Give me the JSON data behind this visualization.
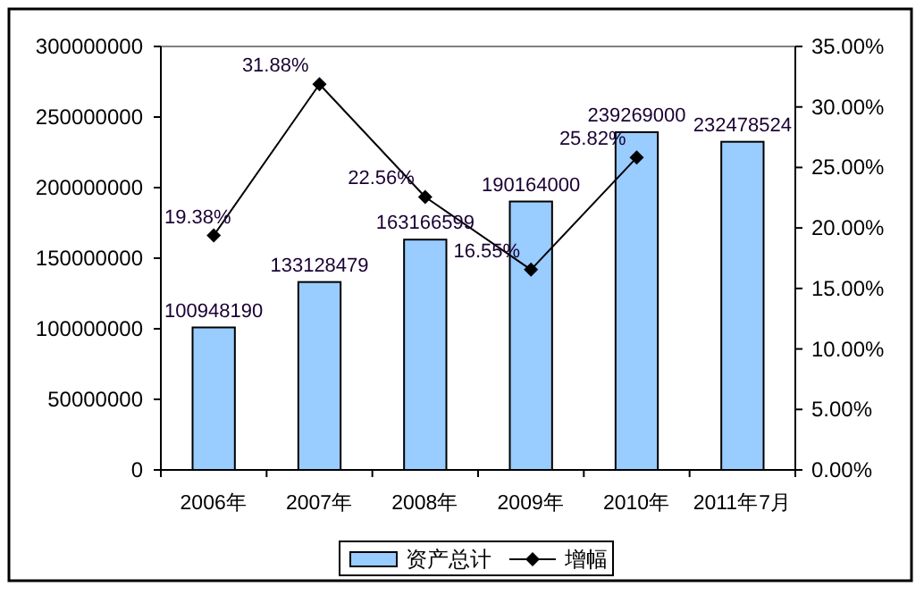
{
  "chart_data": {
    "type": "bar",
    "categories": [
      "2006年",
      "2007年",
      "2008年",
      "2009年",
      "2010年",
      "2011年7月"
    ],
    "series": [
      {
        "name": "资产总计",
        "color": "#99ccff",
        "values": [
          100948190,
          133128479,
          163166599,
          190164000,
          239269000,
          232478524
        ],
        "value_labels": [
          "100948190",
          "133128479",
          "163166599",
          "190164000",
          "239269000",
          "232478524"
        ]
      },
      {
        "name": "增幅",
        "type": "line",
        "axis": "y2",
        "color": "#000000",
        "marker": "diamond",
        "values": [
          19.38,
          31.88,
          22.56,
          16.55,
          25.82,
          null
        ],
        "value_labels": [
          "19.38%",
          "31.88%",
          "22.56%",
          "16.55%",
          "25.82%",
          null
        ]
      }
    ],
    "ylim": [
      0,
      300000000
    ],
    "yticks": [
      0,
      50000000,
      100000000,
      150000000,
      200000000,
      250000000,
      300000000
    ],
    "y2lim": [
      0,
      35
    ],
    "y2ticks": [
      {
        "value": 0,
        "label": "0.00%"
      },
      {
        "value": 5,
        "label": "5.00%"
      },
      {
        "value": 10,
        "label": "10.00%"
      },
      {
        "value": 15,
        "label": "15.00%"
      },
      {
        "value": 20,
        "label": "20.00%"
      },
      {
        "value": 25,
        "label": "25.00%"
      },
      {
        "value": 30,
        "label": "30.00%"
      },
      {
        "value": 35,
        "label": "35.00%"
      }
    ],
    "grid": false,
    "legend": "bottom"
  }
}
